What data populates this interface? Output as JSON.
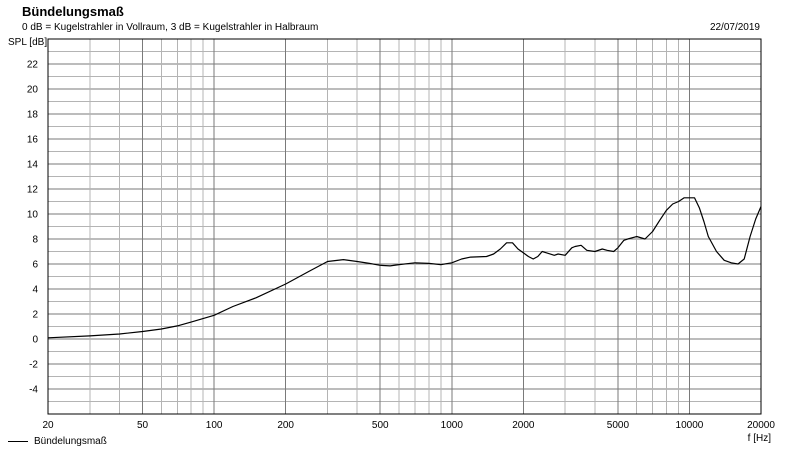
{
  "title": "Bündelungsmaß",
  "subtitle": "0 dB = Kugelstrahler in Vollraum, 3 dB = Kugelstrahler in Halbraum",
  "date": "22/07/2019",
  "colors": {
    "line": "#000000",
    "major_grid": "#7a7a7a",
    "minor_grid": "#b4b4b4",
    "background": "#ffffff"
  },
  "chart_data": {
    "type": "line",
    "title": "Bündelungsmaß",
    "xlabel": "f [Hz]",
    "ylabel": "SPL [dB]",
    "x_scale": "log",
    "xlim": [
      20,
      20000
    ],
    "ylim": [
      -6,
      24
    ],
    "grid": true,
    "legend_position": "bottom-left",
    "x_ticks": [
      20,
      50,
      100,
      200,
      500,
      1000,
      2000,
      5000,
      10000,
      20000
    ],
    "y_ticks": [
      -4,
      -2,
      0,
      2,
      4,
      6,
      8,
      10,
      12,
      14,
      16,
      18,
      20,
      22
    ],
    "series": [
      {
        "name": "Bündelungsmaß",
        "x": [
          20,
          30,
          40,
          50,
          60,
          70,
          80,
          100,
          120,
          150,
          200,
          250,
          300,
          350,
          400,
          450,
          500,
          550,
          600,
          700,
          800,
          900,
          1000,
          1100,
          1200,
          1400,
          1500,
          1600,
          1700,
          1800,
          1900,
          2000,
          2100,
          2200,
          2300,
          2400,
          2500,
          2700,
          2800,
          3000,
          3200,
          3300,
          3500,
          3700,
          4000,
          4300,
          4500,
          4800,
          5000,
          5300,
          5500,
          6000,
          6500,
          7000,
          7500,
          8000,
          8500,
          9000,
          9500,
          10000,
          10500,
          11000,
          11500,
          12000,
          13000,
          14000,
          15000,
          16000,
          17000,
          18000,
          19000,
          20000
        ],
        "y": [
          0.1,
          0.25,
          0.4,
          0.6,
          0.8,
          1.05,
          1.35,
          1.9,
          2.6,
          3.3,
          4.4,
          5.4,
          6.2,
          6.35,
          6.2,
          6.05,
          5.9,
          5.85,
          5.95,
          6.1,
          6.05,
          5.95,
          6.1,
          6.4,
          6.55,
          6.6,
          6.8,
          7.2,
          7.7,
          7.7,
          7.2,
          6.9,
          6.6,
          6.4,
          6.6,
          7.0,
          6.9,
          6.7,
          6.8,
          6.7,
          7.3,
          7.4,
          7.5,
          7.1,
          7.0,
          7.2,
          7.1,
          7.0,
          7.3,
          7.9,
          8.0,
          8.2,
          8.0,
          8.6,
          9.5,
          10.3,
          10.8,
          11.0,
          11.3,
          11.3,
          11.3,
          10.5,
          9.4,
          8.2,
          7.0,
          6.3,
          6.1,
          6.0,
          6.4,
          8.2,
          9.6,
          10.6
        ]
      }
    ]
  }
}
